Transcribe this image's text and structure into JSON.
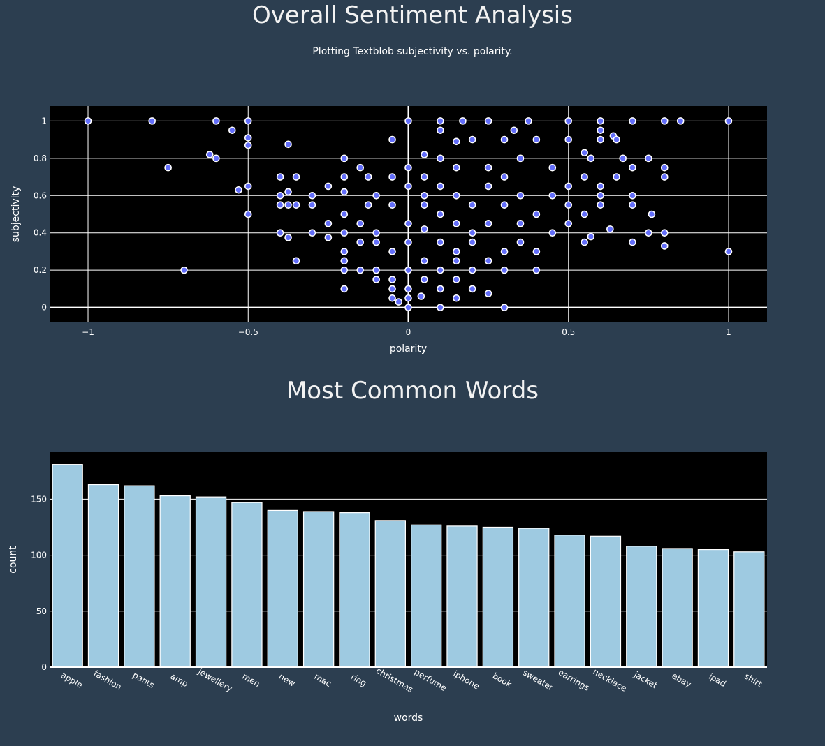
{
  "header": {
    "title": "Overall Sentiment Analysis",
    "subtitle": "Plotting Textblob subjectivity vs. polarity."
  },
  "words_section": {
    "title": "Most Common Words"
  },
  "colors": {
    "page_background": "#2c3e50",
    "plot_background": "#000000",
    "grid": "#ffffff",
    "marker": "#636efa",
    "marker_outline": "#ffffff",
    "bar": "#9ecae1"
  },
  "chart_data": [
    {
      "type": "scatter",
      "title": "Overall Sentiment Analysis",
      "subtitle": "Plotting Textblob subjectivity vs. polarity.",
      "xlabel": "polarity",
      "ylabel": "subjectivity",
      "xlim": [
        -1.12,
        1.12
      ],
      "ylim": [
        -0.08,
        1.08
      ],
      "xticks": [
        -1,
        -0.5,
        0,
        0.5,
        1
      ],
      "xtick_labels": [
        "−1",
        "−0.5",
        "0",
        "0.5",
        "1"
      ],
      "yticks": [
        0,
        0.2,
        0.4,
        0.6,
        0.8,
        1
      ],
      "ytick_labels": [
        "0",
        "0.2",
        "0.4",
        "0.6",
        "0.8",
        "1"
      ],
      "grid": true,
      "points": [
        [
          -1,
          1
        ],
        [
          -0.8,
          1
        ],
        [
          -0.6,
          1
        ],
        [
          -0.5,
          1
        ],
        [
          0,
          1
        ],
        [
          0.1,
          1
        ],
        [
          0.17,
          1
        ],
        [
          0.25,
          1
        ],
        [
          0.375,
          1
        ],
        [
          0.5,
          1
        ],
        [
          0.6,
          1
        ],
        [
          0.7,
          1
        ],
        [
          0.8,
          1
        ],
        [
          0.85,
          1
        ],
        [
          1,
          1
        ],
        [
          -0.55,
          0.95
        ],
        [
          0.1,
          0.95
        ],
        [
          0.33,
          0.95
        ],
        [
          0.6,
          0.95
        ],
        [
          -0.5,
          0.91
        ],
        [
          -0.5,
          0.87
        ],
        [
          -0.375,
          0.875
        ],
        [
          -0.05,
          0.9
        ],
        [
          0.15,
          0.89
        ],
        [
          0.2,
          0.9
        ],
        [
          0.3,
          0.9
        ],
        [
          0.4,
          0.9
        ],
        [
          0.5,
          0.9
        ],
        [
          0.6,
          0.9
        ],
        [
          0.64,
          0.92
        ],
        [
          0.65,
          0.9
        ],
        [
          -0.62,
          0.82
        ],
        [
          -0.6,
          0.8
        ],
        [
          -0.2,
          0.8
        ],
        [
          -0.75,
          0.75
        ],
        [
          0.05,
          0.82
        ],
        [
          0.1,
          0.8
        ],
        [
          -0.15,
          0.75
        ],
        [
          0.35,
          0.8
        ],
        [
          0.55,
          0.83
        ],
        [
          0.57,
          0.8
        ],
        [
          0.67,
          0.8
        ],
        [
          0.75,
          0.8
        ],
        [
          0.8,
          0.75
        ],
        [
          0.8,
          0.7
        ],
        [
          0.7,
          0.75
        ],
        [
          -0.4,
          0.7
        ],
        [
          -0.35,
          0.7
        ],
        [
          -0.25,
          0.65
        ],
        [
          -0.2,
          0.7
        ],
        [
          -0.125,
          0.7
        ],
        [
          -0.05,
          0.7
        ],
        [
          0,
          0.75
        ],
        [
          0.05,
          0.7
        ],
        [
          0.1,
          0.65
        ],
        [
          0.15,
          0.75
        ],
        [
          0.25,
          0.75
        ],
        [
          0.3,
          0.7
        ],
        [
          0.45,
          0.75
        ],
        [
          0.55,
          0.7
        ],
        [
          0.6,
          0.65
        ],
        [
          0.65,
          0.7
        ],
        [
          -0.53,
          0.63
        ],
        [
          -0.5,
          0.65
        ],
        [
          -0.4,
          0.6
        ],
        [
          -0.375,
          0.62
        ],
        [
          -0.3,
          0.6
        ],
        [
          -0.2,
          0.62
        ],
        [
          -0.1,
          0.6
        ],
        [
          0,
          0.65
        ],
        [
          0.05,
          0.6
        ],
        [
          0.15,
          0.6
        ],
        [
          0.25,
          0.65
        ],
        [
          0.35,
          0.6
        ],
        [
          0.45,
          0.6
        ],
        [
          0.5,
          0.65
        ],
        [
          0.6,
          0.6
        ],
        [
          0.7,
          0.6
        ],
        [
          -0.4,
          0.55
        ],
        [
          -0.375,
          0.55
        ],
        [
          -0.35,
          0.55
        ],
        [
          -0.3,
          0.55
        ],
        [
          -0.2,
          0.5
        ],
        [
          -0.125,
          0.55
        ],
        [
          -0.05,
          0.55
        ],
        [
          0.05,
          0.55
        ],
        [
          0.1,
          0.5
        ],
        [
          0.2,
          0.55
        ],
        [
          0.3,
          0.55
        ],
        [
          0.4,
          0.5
        ],
        [
          0.5,
          0.55
        ],
        [
          0.55,
          0.5
        ],
        [
          0.6,
          0.55
        ],
        [
          0.7,
          0.55
        ],
        [
          0.76,
          0.5
        ],
        [
          -0.5,
          0.5
        ],
        [
          -0.4,
          0.4
        ],
        [
          -0.3,
          0.4
        ],
        [
          -0.25,
          0.45
        ],
        [
          -0.2,
          0.4
        ],
        [
          -0.15,
          0.45
        ],
        [
          -0.1,
          0.4
        ],
        [
          0,
          0.45
        ],
        [
          0.05,
          0.42
        ],
        [
          0.15,
          0.45
        ],
        [
          0.2,
          0.4
        ],
        [
          0.25,
          0.45
        ],
        [
          0.35,
          0.45
        ],
        [
          0.45,
          0.4
        ],
        [
          0.5,
          0.45
        ],
        [
          0.63,
          0.42
        ],
        [
          0.75,
          0.4
        ],
        [
          0.8,
          0.4
        ],
        [
          -0.375,
          0.375
        ],
        [
          -0.35,
          0.25
        ],
        [
          -0.25,
          0.375
        ],
        [
          -0.15,
          0.35
        ],
        [
          -0.1,
          0.35
        ],
        [
          -0.05,
          0.3
        ],
        [
          0,
          0.35
        ],
        [
          0.1,
          0.35
        ],
        [
          0.15,
          0.3
        ],
        [
          0.2,
          0.35
        ],
        [
          0.3,
          0.3
        ],
        [
          0.35,
          0.35
        ],
        [
          0.4,
          0.3
        ],
        [
          0.55,
          0.35
        ],
        [
          0.57,
          0.38
        ],
        [
          0.7,
          0.35
        ],
        [
          0.8,
          0.33
        ],
        [
          1,
          0.3
        ],
        [
          -0.7,
          0.2
        ],
        [
          -0.2,
          0.3
        ],
        [
          -0.2,
          0.25
        ],
        [
          -0.2,
          0.2
        ],
        [
          -0.15,
          0.2
        ],
        [
          -0.1,
          0.2
        ],
        [
          -0.05,
          0.15
        ],
        [
          0,
          0.2
        ],
        [
          0.05,
          0.25
        ],
        [
          0.1,
          0.2
        ],
        [
          0.15,
          0.25
        ],
        [
          0.2,
          0.2
        ],
        [
          0.25,
          0.25
        ],
        [
          0.3,
          0.2
        ],
        [
          0.4,
          0.2
        ],
        [
          -0.2,
          0.1
        ],
        [
          -0.1,
          0.15
        ],
        [
          -0.05,
          0.1
        ],
        [
          0,
          0.1
        ],
        [
          0.05,
          0.15
        ],
        [
          0.1,
          0.1
        ],
        [
          0.15,
          0.15
        ],
        [
          0.2,
          0.1
        ],
        [
          0.25,
          0.075
        ],
        [
          -0.05,
          0.05
        ],
        [
          -0.03,
          0.03
        ],
        [
          0,
          0.05
        ],
        [
          0.04,
          0.06
        ],
        [
          0.15,
          0.05
        ],
        [
          0,
          0
        ],
        [
          0.1,
          0
        ],
        [
          0.3,
          0
        ]
      ]
    },
    {
      "type": "bar",
      "title": "Most Common Words",
      "xlabel": "words",
      "ylabel": "count",
      "ylim": [
        0,
        192
      ],
      "yticks": [
        0,
        50,
        100,
        150
      ],
      "ytick_labels": [
        "0",
        "50",
        "100",
        "150"
      ],
      "grid": true,
      "categories": [
        "apple",
        "fashion",
        "pants",
        "amp",
        "jewellery",
        "men",
        "new",
        "mac",
        "ring",
        "christmas",
        "perfume",
        "iphone",
        "book",
        "sweater",
        "earrings",
        "necklace",
        "jacket",
        "ebay",
        "ipad",
        "shirt"
      ],
      "values": [
        181,
        163,
        162,
        153,
        152,
        147,
        140,
        139,
        138,
        131,
        127,
        126,
        125,
        124,
        118,
        117,
        108,
        106,
        105,
        103
      ]
    }
  ]
}
